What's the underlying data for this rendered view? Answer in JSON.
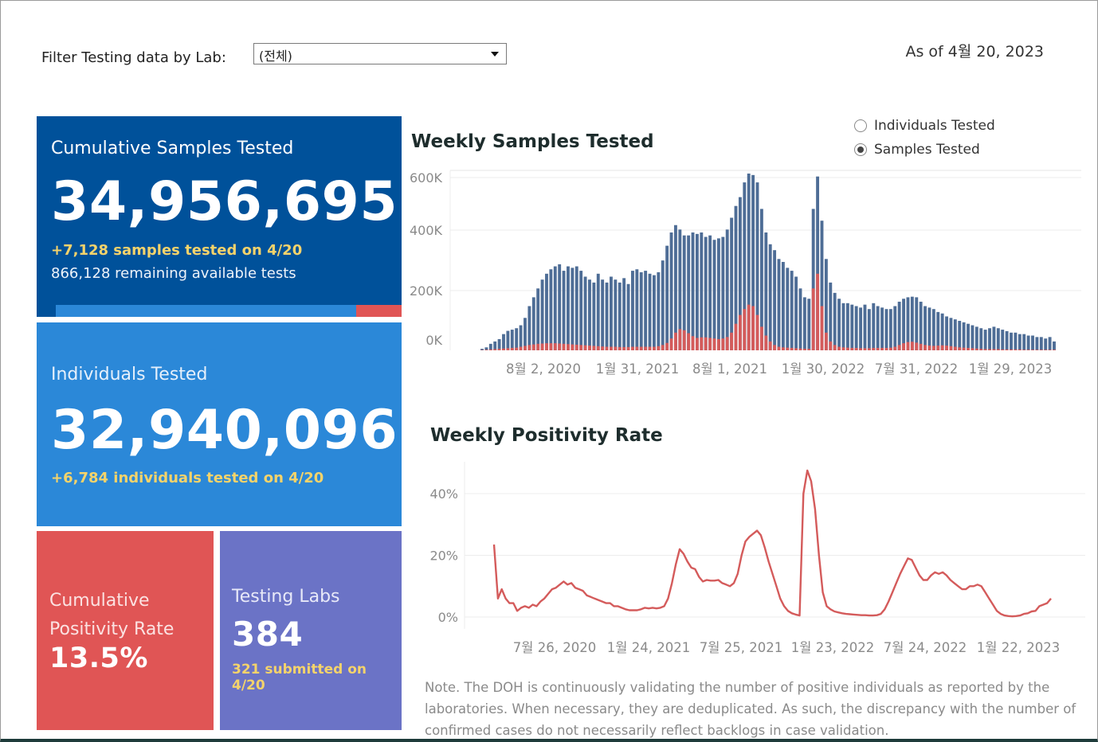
{
  "filter": {
    "label": "Filter Testing data by Lab:",
    "value": "(전체)"
  },
  "as_of": "As of 4월 20, 2023",
  "cumulative": {
    "title": "Cumulative Samples Tested",
    "value": "34,956,695",
    "today": "+7,128 samples tested on 4/20",
    "remaining": "866,128 remaining available tests"
  },
  "individuals": {
    "title": "Individuals Tested",
    "value": "32,940,096",
    "today": "+6,784  individuals  tested on 4/20"
  },
  "positivity": {
    "title_line1": "Cumulative",
    "title_line2": "Positivity Rate",
    "value": "13.5%"
  },
  "labs": {
    "title": "Testing Labs",
    "value": "384",
    "today": "321 submitted on 4/20"
  },
  "weekly_samples": {
    "title": "Weekly Samples Tested",
    "toggle": [
      {
        "label": "Individuals Tested",
        "selected": false
      },
      {
        "label": "Samples Tested",
        "selected": true
      }
    ]
  },
  "weekly_positivity": {
    "title": "Weekly Positivity Rate"
  },
  "note": "Note. The DOH is continuously validating the number of positive individuals as reported by the laboratories. When necessary, they are deduplicated. As such, the discrepancy with the number of confirmed cases do not necessarily reflect backlogs in case validation.",
  "colors": {
    "navy": "#00519a",
    "blue": "#2b88d8",
    "red": "#e05555",
    "purple": "#6b73c6",
    "yellow": "#f4d36b",
    "bar": "#4e6d96",
    "line": "#d45b5b"
  },
  "chart_data": [
    {
      "type": "bar",
      "title": "Weekly Samples Tested",
      "y_ticks": [
        "0K",
        "200K",
        "400K",
        "600K"
      ],
      "x_ticks": [
        "8월 2, 2020",
        "1월 31, 2021",
        "8월 1, 2021",
        "1월 30, 2022",
        "7월 31, 2022",
        "1월 29, 2023"
      ],
      "ylim": [
        0,
        600000
      ],
      "x_start": "2020-04-12",
      "interval": "weekly",
      "series": [
        {
          "name": "Samples Tested",
          "values": [
            5000,
            10000,
            22000,
            30000,
            38000,
            55000,
            66000,
            70000,
            75000,
            85000,
            110000,
            150000,
            180000,
            210000,
            240000,
            260000,
            275000,
            285000,
            292000,
            270000,
            285000,
            280000,
            285000,
            270000,
            250000,
            240000,
            230000,
            260000,
            240000,
            230000,
            250000,
            240000,
            230000,
            245000,
            225000,
            270000,
            275000,
            265000,
            270000,
            260000,
            255000,
            265000,
            305000,
            355000,
            400000,
            425000,
            410000,
            390000,
            390000,
            400000,
            395000,
            400000,
            385000,
            390000,
            375000,
            380000,
            385000,
            410000,
            450000,
            490000,
            520000,
            570000,
            600000,
            595000,
            570000,
            480000,
            400000,
            360000,
            340000,
            310000,
            300000,
            280000,
            270000,
            250000,
            210000,
            180000,
            175000,
            480000,
            590000,
            440000,
            310000,
            230000,
            195000,
            175000,
            160000,
            160000,
            155000,
            150000,
            145000,
            155000,
            140000,
            160000,
            150000,
            145000,
            140000,
            140000,
            150000,
            165000,
            175000,
            180000,
            182000,
            180000,
            165000,
            150000,
            145000,
            140000,
            130000,
            125000,
            115000,
            110000,
            105000,
            100000,
            95000,
            90000,
            85000,
            80000,
            75000,
            70000,
            75000,
            80000,
            75000,
            70000,
            65000,
            60000,
            60000,
            55000,
            55000,
            50000,
            50000,
            45000,
            45000,
            40000,
            45000,
            30000
          ]
        },
        {
          "name": "Positive",
          "values": [
            1000,
            2000,
            3000,
            4000,
            5000,
            6000,
            7000,
            8000,
            9000,
            12000,
            15000,
            18000,
            20000,
            22000,
            23000,
            24000,
            24000,
            24000,
            23000,
            22000,
            21000,
            20000,
            19000,
            18000,
            17000,
            16000,
            15000,
            14000,
            13000,
            12000,
            12000,
            12000,
            11000,
            11000,
            11000,
            12000,
            12000,
            12000,
            12000,
            12000,
            12000,
            14000,
            18000,
            25000,
            40000,
            60000,
            72000,
            68000,
            58000,
            48000,
            42000,
            44000,
            44000,
            42000,
            40000,
            38000,
            40000,
            45000,
            60000,
            90000,
            120000,
            140000,
            155000,
            150000,
            120000,
            80000,
            50000,
            30000,
            18000,
            12000,
            10000,
            9000,
            8000,
            7000,
            6000,
            5000,
            5000,
            210000,
            260000,
            150000,
            60000,
            30000,
            18000,
            12000,
            10000,
            9000,
            8000,
            8000,
            7000,
            7000,
            7000,
            8000,
            8000,
            8000,
            8000,
            9000,
            12000,
            18000,
            24000,
            28000,
            29000,
            26000,
            22000,
            18000,
            16000,
            15000,
            16000,
            17000,
            16000,
            14000,
            12000,
            10000,
            9000,
            8000,
            7000,
            6000,
            5000,
            4000,
            4000,
            4000,
            4000,
            3000,
            3000,
            3000,
            3000,
            3000,
            2000,
            2000,
            2000,
            2000,
            2000,
            2000,
            2000,
            2000
          ]
        }
      ]
    },
    {
      "type": "line",
      "title": "Weekly Positivity Rate",
      "y_ticks": [
        "0%",
        "20%",
        "40%"
      ],
      "x_ticks": [
        "7월 26, 2020",
        "1월 24, 2021",
        "7월 25, 2021",
        "1월 23, 2022",
        "7월 24, 2022",
        "1월 22, 2023"
      ],
      "ylim": [
        0,
        0.5
      ],
      "x_start": "2020-04-19",
      "interval": "weekly",
      "series": [
        {
          "name": "Positivity Rate",
          "values": [
            0.235,
            0.06,
            0.09,
            0.06,
            0.045,
            0.045,
            0.02,
            0.03,
            0.035,
            0.03,
            0.04,
            0.035,
            0.05,
            0.06,
            0.075,
            0.09,
            0.095,
            0.105,
            0.115,
            0.105,
            0.11,
            0.095,
            0.09,
            0.085,
            0.07,
            0.065,
            0.06,
            0.055,
            0.05,
            0.045,
            0.045,
            0.035,
            0.035,
            0.03,
            0.025,
            0.022,
            0.022,
            0.022,
            0.025,
            0.03,
            0.028,
            0.03,
            0.028,
            0.03,
            0.035,
            0.06,
            0.11,
            0.17,
            0.22,
            0.205,
            0.18,
            0.16,
            0.155,
            0.13,
            0.115,
            0.12,
            0.118,
            0.118,
            0.12,
            0.11,
            0.105,
            0.1,
            0.11,
            0.14,
            0.2,
            0.245,
            0.26,
            0.27,
            0.28,
            0.265,
            0.225,
            0.18,
            0.14,
            0.1,
            0.06,
            0.035,
            0.02,
            0.012,
            0.008,
            0.005,
            0.4,
            0.475,
            0.44,
            0.35,
            0.2,
            0.08,
            0.035,
            0.025,
            0.018,
            0.015,
            0.012,
            0.01,
            0.009,
            0.008,
            0.007,
            0.006,
            0.006,
            0.005,
            0.005,
            0.006,
            0.01,
            0.025,
            0.05,
            0.08,
            0.11,
            0.14,
            0.165,
            0.19,
            0.185,
            0.16,
            0.135,
            0.12,
            0.12,
            0.135,
            0.145,
            0.14,
            0.145,
            0.135,
            0.12,
            0.11,
            0.1,
            0.09,
            0.09,
            0.1,
            0.1,
            0.105,
            0.1,
            0.08,
            0.06,
            0.04,
            0.02,
            0.01,
            0.005,
            0.003,
            0.002,
            0.003,
            0.005,
            0.01,
            0.012,
            0.018,
            0.02,
            0.035,
            0.04,
            0.045,
            0.06
          ]
        }
      ]
    }
  ]
}
